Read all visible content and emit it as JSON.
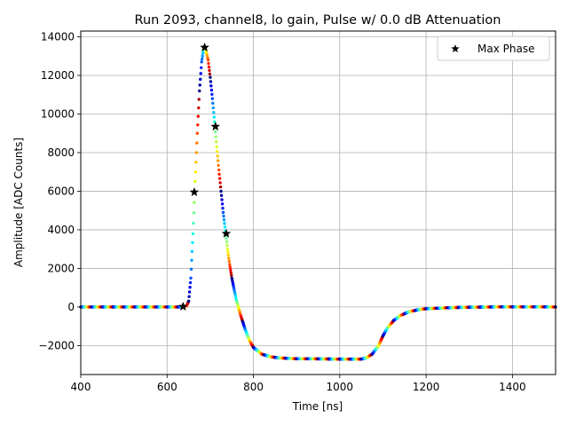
{
  "chart_data": {
    "type": "scatter",
    "title": "Run 2093, channel8, lo gain, Pulse w/ 0.0 dB Attenuation",
    "xlabel": "Time [ns]",
    "ylabel": "Amplitude [ADC Counts]",
    "xlim": [
      400,
      1500
    ],
    "ylim": [
      -3500,
      14300
    ],
    "xticks": [
      400,
      600,
      800,
      1000,
      1200,
      1400
    ],
    "yticks": [
      -2000,
      0,
      2000,
      4000,
      6000,
      8000,
      10000,
      12000,
      14000
    ],
    "xtick_labels": [
      "400",
      "600",
      "800",
      "1000",
      "1200",
      "1400"
    ],
    "ytick_labels": [
      "−2000",
      "0",
      "2000",
      "4000",
      "6000",
      "8000",
      "10000",
      "12000",
      "14000"
    ],
    "grid": true,
    "legend": {
      "placement": "top-right",
      "entries": [
        "Max Phase"
      ]
    },
    "colormap": "jet",
    "pulse_curve": [
      [
        400,
        0
      ],
      [
        630,
        0
      ],
      [
        645,
        50
      ],
      [
        650,
        300
      ],
      [
        655,
        1500
      ],
      [
        660,
        3800
      ],
      [
        665,
        6500
      ],
      [
        670,
        9000
      ],
      [
        675,
        11200
      ],
      [
        680,
        12700
      ],
      [
        685,
        13450
      ],
      [
        690,
        13300
      ],
      [
        695,
        12800
      ],
      [
        700,
        11900
      ],
      [
        705,
        10800
      ],
      [
        710,
        9600
      ],
      [
        715,
        8300
      ],
      [
        720,
        7100
      ],
      [
        725,
        6000
      ],
      [
        730,
        4900
      ],
      [
        735,
        3950
      ],
      [
        740,
        3000
      ],
      [
        745,
        2200
      ],
      [
        750,
        1500
      ],
      [
        755,
        950
      ],
      [
        760,
        400
      ],
      [
        770,
        -400
      ],
      [
        780,
        -1100
      ],
      [
        790,
        -1700
      ],
      [
        800,
        -2100
      ],
      [
        820,
        -2450
      ],
      [
        840,
        -2580
      ],
      [
        860,
        -2640
      ],
      [
        900,
        -2680
      ],
      [
        1000,
        -2700
      ],
      [
        1050,
        -2700
      ],
      [
        1060,
        -2650
      ],
      [
        1075,
        -2450
      ],
      [
        1090,
        -2000
      ],
      [
        1100,
        -1500
      ],
      [
        1110,
        -1100
      ],
      [
        1125,
        -700
      ],
      [
        1140,
        -450
      ],
      [
        1160,
        -250
      ],
      [
        1180,
        -150
      ],
      [
        1200,
        -90
      ],
      [
        1250,
        -40
      ],
      [
        1300,
        -10
      ],
      [
        1400,
        10
      ],
      [
        1500,
        0
      ]
    ],
    "max_phase_points": [
      {
        "x": 637,
        "y": 20
      },
      {
        "x": 663,
        "y": 5950
      },
      {
        "x": 687,
        "y": 13450
      },
      {
        "x": 712,
        "y": 9350
      },
      {
        "x": 737,
        "y": 3800
      }
    ]
  }
}
